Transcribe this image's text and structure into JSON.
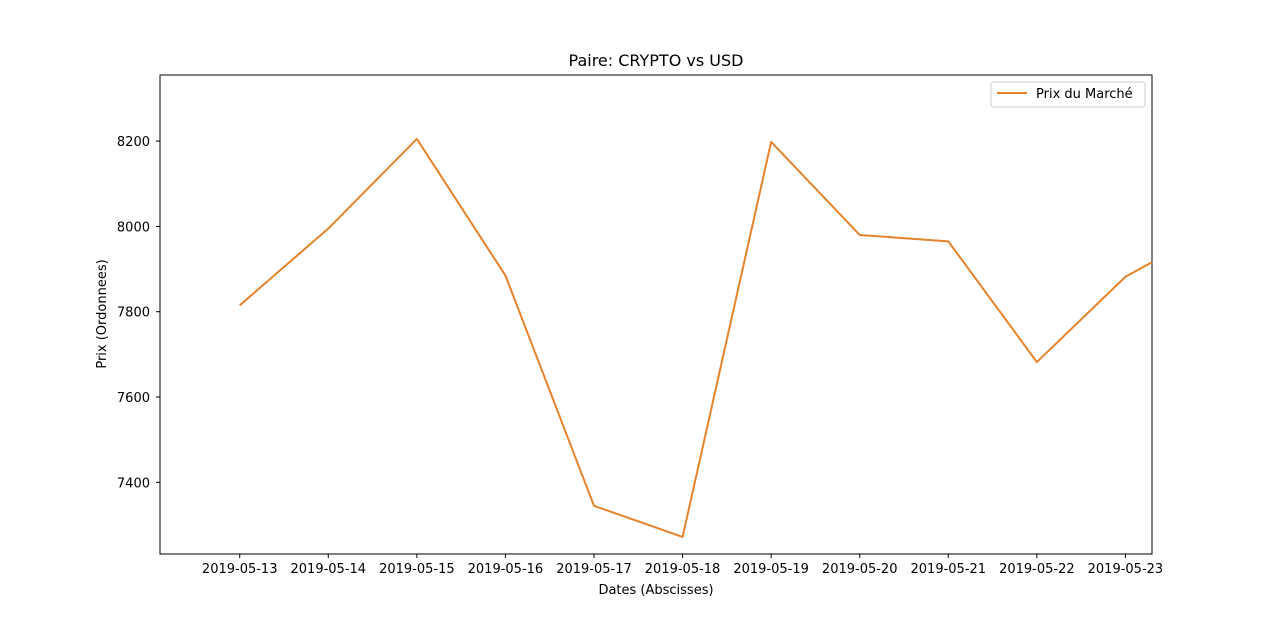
{
  "chart_data": {
    "type": "line",
    "title": "Paire: CRYPTO vs USD",
    "xlabel": "Dates (Abscisses)",
    "ylabel": "Prix (Ordonnees)",
    "x": [
      "2019-05-13",
      "2019-05-14",
      "2019-05-15",
      "2019-05-16",
      "2019-05-17",
      "2019-05-18",
      "2019-05-19",
      "2019-05-20",
      "2019-05-21",
      "2019-05-22",
      "2019-05-23"
    ],
    "x_extension_days": 0.3,
    "x_extension_value": 7916,
    "series": [
      {
        "name": "Prix du Marché",
        "color": "#e6832c",
        "values": [
          7815,
          7995,
          8205,
          7885,
          7345,
          7272,
          8198,
          7980,
          7965,
          7682,
          7882
        ]
      }
    ],
    "yticks": [
      7400,
      7600,
      7800,
      8000,
      8200
    ],
    "ylim": [
      7232,
      8355
    ],
    "xlim_days": [
      -0.9,
      10.3
    ],
    "grid": false,
    "legend": {
      "position": "top-right",
      "entries": [
        "Prix du Marché"
      ]
    }
  }
}
